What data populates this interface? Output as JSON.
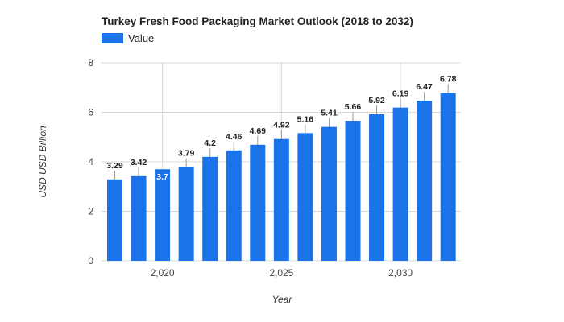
{
  "chart_data": {
    "type": "bar",
    "title": "Turkey Fresh Food Packaging Market Outlook (2018 to 2032)",
    "xlabel": "Year",
    "ylabel": "USD USD Billion",
    "x": [
      2018,
      2019,
      2020,
      2021,
      2022,
      2023,
      2024,
      2025,
      2026,
      2027,
      2028,
      2029,
      2030,
      2031,
      2032
    ],
    "series": [
      {
        "name": "Value",
        "values": [
          3.29,
          3.42,
          3.7,
          3.79,
          4.2,
          4.46,
          4.69,
          4.92,
          5.16,
          5.41,
          5.66,
          5.92,
          6.19,
          6.47,
          6.78
        ],
        "labels": [
          "3.29",
          "3.42",
          "3.7",
          "3.79",
          "4.2",
          "4.46",
          "4.69",
          "4.92",
          "5.16",
          "5.41",
          "5.66",
          "5.92",
          "6.19",
          "6.47",
          "6.78"
        ]
      }
    ],
    "ylim": [
      0,
      8
    ],
    "yticks": [
      "0",
      "2",
      "4",
      "6",
      "8"
    ],
    "xticks": [
      {
        "value": 2020,
        "label": "2,020"
      },
      {
        "value": 2025,
        "label": "2,025"
      },
      {
        "value": 2030,
        "label": "2,030"
      }
    ],
    "grid": true,
    "legend_position": "top-left",
    "colors": {
      "bar": "#1a73e8",
      "inside_label": "#ffffff"
    }
  }
}
